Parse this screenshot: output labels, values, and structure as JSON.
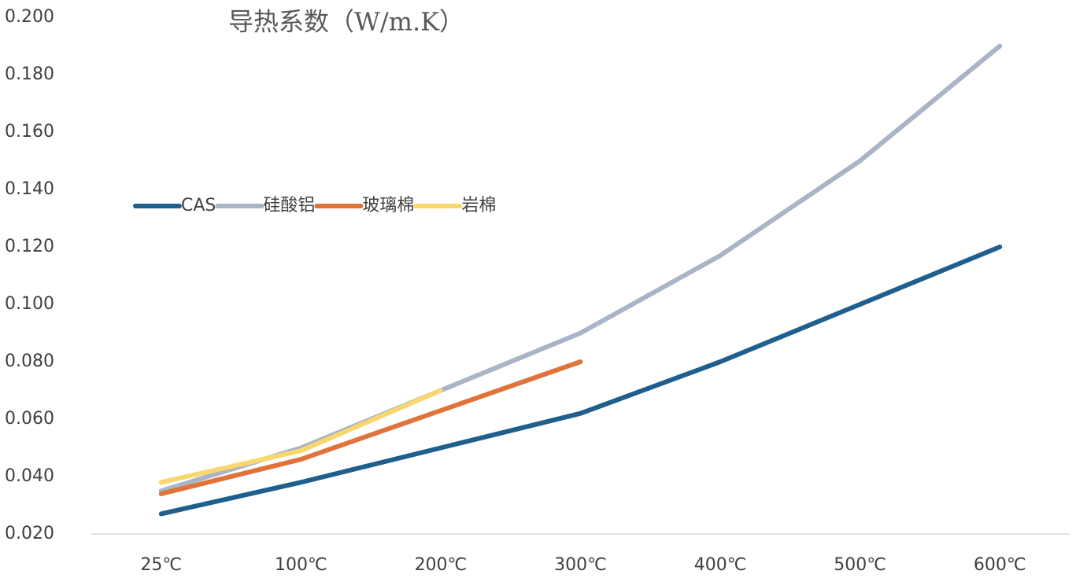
{
  "chart_data": {
    "type": "line",
    "title": "导热系数（W/m.K）",
    "categories": [
      "25℃",
      "100℃",
      "200℃",
      "300℃",
      "400℃",
      "500℃",
      "600℃"
    ],
    "series": [
      {
        "name": "CAS",
        "color": "#1f5f8e",
        "values": [
          0.027,
          0.038,
          0.05,
          0.062,
          0.08,
          0.1,
          0.12
        ]
      },
      {
        "name": "硅酸铝",
        "color": "#aab4c7",
        "values": [
          0.035,
          0.05,
          0.07,
          0.09,
          0.117,
          0.15,
          0.19
        ]
      },
      {
        "name": "玻璃棉",
        "color": "#e0733a",
        "values": [
          0.034,
          0.046,
          0.063,
          0.08,
          null,
          null,
          null
        ]
      },
      {
        "name": "岩棉",
        "color": "#f8d86e",
        "values": [
          0.038,
          0.049,
          0.07,
          null,
          null,
          null,
          null
        ]
      }
    ],
    "ylim": [
      0.02,
      0.2
    ],
    "yticks": [
      {
        "value": 0.02,
        "label": "0.020"
      },
      {
        "value": 0.04,
        "label": "0.040"
      },
      {
        "value": 0.06,
        "label": "0.060"
      },
      {
        "value": 0.08,
        "label": "0.080"
      },
      {
        "value": 0.1,
        "label": "0.100"
      },
      {
        "value": 0.12,
        "label": "0.120"
      },
      {
        "value": 0.14,
        "label": "0.140"
      },
      {
        "value": 0.16,
        "label": "0.160"
      },
      {
        "value": 0.18,
        "label": "0.180"
      },
      {
        "value": 0.2,
        "label": "0.200"
      }
    ],
    "grid": false
  }
}
